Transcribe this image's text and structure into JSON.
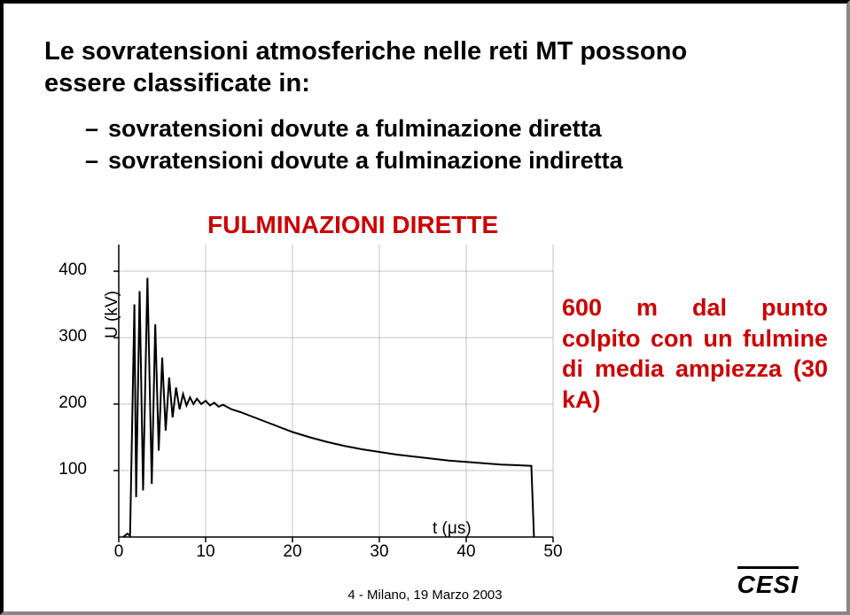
{
  "title_line1": "Le sovratensioni atmosferiche nelle reti MT possono",
  "title_line2": "essere classificate in:",
  "bullet1": "sovratensioni dovute a fulminazione diretta",
  "bullet2": "sovratensioni dovute a fulminazione indiretta",
  "chart": {
    "type": "line",
    "chart_title": "FULMINAZIONI DIRETTE",
    "annotation": "600 m dal punto colpito con un fulmine di media ampiezza (30 kA)",
    "ylabel": "U (kV)",
    "xlabel": "t (μs)",
    "xlim": [
      0,
      50
    ],
    "ylim": [
      0,
      440
    ],
    "xticks": [
      0,
      10,
      20,
      30,
      40,
      50
    ],
    "yticks": [
      100,
      200,
      300,
      400
    ],
    "line_color": "#000000",
    "line_width": 2,
    "grid_color": "#888888",
    "background_color": "#ffffff",
    "tick_fontsize": 19,
    "label_fontsize": 19,
    "title_fontsize": 28,
    "title_color": "#cc0000",
    "annotation_color": "#cc0000",
    "annotation_fontsize": 27,
    "waveform": [
      [
        0.5,
        0
      ],
      [
        1.0,
        5
      ],
      [
        1.3,
        2
      ],
      [
        1.8,
        350
      ],
      [
        2.0,
        60
      ],
      [
        2.4,
        370
      ],
      [
        2.8,
        70
      ],
      [
        3.3,
        390
      ],
      [
        3.8,
        80
      ],
      [
        4.2,
        320
      ],
      [
        4.6,
        130
      ],
      [
        5.0,
        270
      ],
      [
        5.4,
        160
      ],
      [
        5.8,
        240
      ],
      [
        6.2,
        180
      ],
      [
        6.6,
        225
      ],
      [
        7.0,
        192
      ],
      [
        7.4,
        215
      ],
      [
        7.8,
        198
      ],
      [
        8.2,
        210
      ],
      [
        8.6,
        200
      ],
      [
        9.0,
        208
      ],
      [
        9.5,
        200
      ],
      [
        10,
        205
      ],
      [
        10.5,
        198
      ],
      [
        11,
        202
      ],
      [
        11.5,
        196
      ],
      [
        12,
        199
      ],
      [
        13,
        192
      ],
      [
        14,
        188
      ],
      [
        15,
        183
      ],
      [
        16,
        178
      ],
      [
        18,
        168
      ],
      [
        20,
        158
      ],
      [
        22,
        150
      ],
      [
        24,
        143
      ],
      [
        26,
        137
      ],
      [
        28,
        132
      ],
      [
        30,
        128
      ],
      [
        32,
        124
      ],
      [
        34,
        121
      ],
      [
        36,
        118
      ],
      [
        38,
        115
      ],
      [
        40,
        113
      ],
      [
        42,
        111
      ],
      [
        44,
        109
      ],
      [
        46,
        108
      ],
      [
        47.5,
        107
      ],
      [
        47.8,
        0
      ]
    ]
  },
  "footer": "4 - Milano, 19 Marzo 2003",
  "logo": "CESI",
  "colors": {
    "text": "#000000",
    "accent": "#cc0000",
    "bg": "#ffffff",
    "border_light": "#888888"
  }
}
